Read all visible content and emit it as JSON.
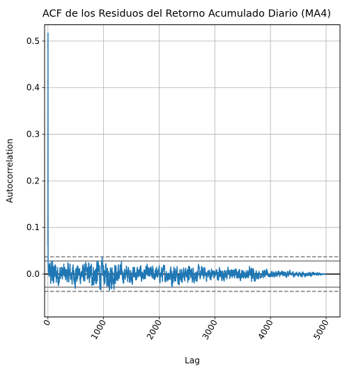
{
  "chart_data": {
    "type": "line",
    "title": "ACF de los Residuos del Retorno Acumulado Diario (MA4)",
    "xlabel": "Lag",
    "ylabel": "Autocorrelation",
    "xlim": [
      -60,
      5250
    ],
    "ylim": [
      -0.092,
      0.535
    ],
    "x_ticks": [
      0,
      1000,
      2000,
      3000,
      4000,
      5000
    ],
    "x_tick_labels": [
      "0",
      "1000",
      "2000",
      "3000",
      "4000",
      "5000"
    ],
    "y_ticks": [
      0.0,
      0.1,
      0.2,
      0.3,
      0.4,
      0.5
    ],
    "y_tick_labels": [
      "0.0",
      "0.1",
      "0.2",
      "0.3",
      "0.4",
      "0.5"
    ],
    "x_tick_rotation_deg": 60,
    "grid": true,
    "legend": "none",
    "confidence_lines": {
      "solid": [
        0.028,
        -0.028
      ],
      "dashed": [
        0.037,
        -0.037
      ]
    },
    "zero_line": 0.0,
    "series": [
      {
        "color": "#1f77b4",
        "x": [
          1,
          2,
          3,
          6,
          10,
          20,
          40,
          60,
          80,
          100,
          130,
          160,
          200,
          250,
          300,
          350,
          400,
          450,
          500,
          560,
          620,
          700,
          780,
          850,
          900,
          930,
          960,
          1000,
          1050,
          1100,
          1150,
          1180,
          1220,
          1300,
          1400,
          1500,
          1600,
          1700,
          1800,
          1900,
          2000,
          2100,
          2200,
          2220,
          2300,
          2400,
          2500,
          2600,
          2700,
          2800,
          2900,
          3000,
          3100,
          3200,
          3300,
          3400,
          3500,
          3600,
          3650,
          3700,
          3800,
          3900,
          4000,
          4100,
          4200,
          4300,
          4400,
          4500,
          4600,
          4700,
          4800,
          4900,
          4950,
          5000
        ],
        "amplitude": [
          0.517,
          0.12,
          0.06,
          0.04,
          0.035,
          0.045,
          0.05,
          0.055,
          0.06,
          0.05,
          0.045,
          0.05,
          0.04,
          0.04,
          0.035,
          0.035,
          0.045,
          0.04,
          0.045,
          0.04,
          0.035,
          0.04,
          0.045,
          0.05,
          0.06,
          0.055,
          0.05,
          0.045,
          0.04,
          0.05,
          0.055,
          0.05,
          0.04,
          0.035,
          0.03,
          0.035,
          0.03,
          0.03,
          0.028,
          0.03,
          0.028,
          0.03,
          0.032,
          0.05,
          0.03,
          0.028,
          0.03,
          0.028,
          0.027,
          0.025,
          0.025,
          0.024,
          0.025,
          0.022,
          0.02,
          0.02,
          0.018,
          0.02,
          0.035,
          0.02,
          0.016,
          0.015,
          0.014,
          0.012,
          0.012,
          0.012,
          0.01,
          0.01,
          0.009,
          0.008,
          0.006,
          0.004,
          0.002,
          0.001
        ]
      }
    ]
  }
}
